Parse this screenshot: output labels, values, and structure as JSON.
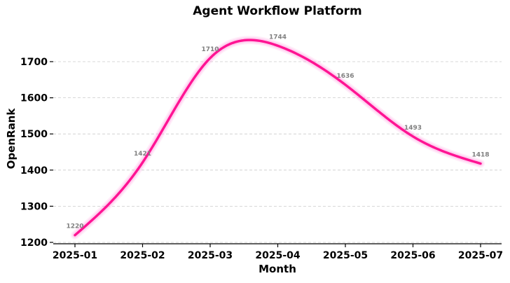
{
  "chart_data": {
    "type": "line",
    "title": "Agent Workflow Platform",
    "xlabel": "Month",
    "ylabel": "OpenRank",
    "x_ticks": [
      "2025-01",
      "2025-02",
      "2025-03",
      "2025-04",
      "2025-05",
      "2025-06",
      "2025-07"
    ],
    "y_ticks": [
      1200,
      1300,
      1400,
      1500,
      1600,
      1700
    ],
    "ylim": [
      1195,
      1790
    ],
    "grid": "horizontal dashed",
    "points": [
      {
        "x": "2025-01",
        "y": 1220,
        "label": "1220"
      },
      {
        "x": "2025-02",
        "y": 1421,
        "label": "1421"
      },
      {
        "x": "2025-03",
        "y": 1710,
        "label": "1710"
      },
      {
        "x": "2025-04",
        "y": 1744,
        "label": "1744"
      },
      {
        "x": "2025-05",
        "y": 1636,
        "label": "1636"
      },
      {
        "x": "2025-06",
        "y": 1493,
        "label": "1493"
      },
      {
        "x": "2025-07",
        "y": 1418,
        "label": "1418"
      }
    ],
    "series_color": "#ff1493",
    "glow_color": "#ff99dd"
  }
}
